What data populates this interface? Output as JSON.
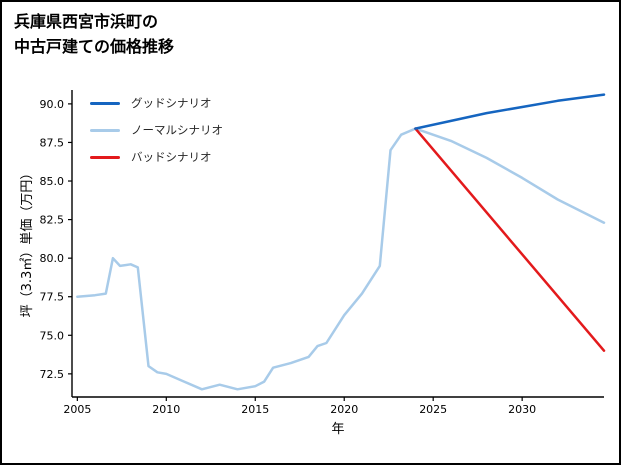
{
  "title": {
    "line1": "兵庫県西宮市浜町の",
    "line2": "中古戸建ての価格推移"
  },
  "chart_data": {
    "type": "line",
    "title": "兵庫県西宮市浜町の中古戸建ての価格推移",
    "xlabel": "年",
    "ylabel": "坪（3.3㎡）単価（万円）",
    "xlim": [
      2004.7,
      2034.6
    ],
    "ylim": [
      71.0,
      90.9
    ],
    "xticks": [
      2005,
      2010,
      2015,
      2020,
      2025,
      2030
    ],
    "xtick_labels": [
      "2005",
      "2010",
      "2015",
      "2020",
      "2025",
      "2030"
    ],
    "yticks": [
      72.5,
      75.0,
      77.5,
      80.0,
      82.5,
      85.0,
      87.5,
      90.0
    ],
    "ytick_labels": [
      "72.5",
      "75.0",
      "77.5",
      "80.0",
      "82.5",
      "85.0",
      "87.5",
      "90.0"
    ],
    "grid": false,
    "legend_position": "upper-left-inside",
    "axis_color": "#000000",
    "series": [
      {
        "name": "グッドシナリオ",
        "role": "forecast-good",
        "color": "#1565c0",
        "line_width": 2.5,
        "points": [
          [
            2024,
            88.4
          ],
          [
            2026,
            88.9
          ],
          [
            2028,
            89.4
          ],
          [
            2030,
            89.8
          ],
          [
            2032,
            90.2
          ],
          [
            2034.6,
            90.6
          ]
        ]
      },
      {
        "name": "ノーマルシナリオ",
        "role": "history-and-forecast-normal",
        "color": "#a8cbe9",
        "line_width": 2.5,
        "points": [
          [
            2005,
            77.5
          ],
          [
            2006,
            77.6
          ],
          [
            2006.6,
            77.7
          ],
          [
            2007,
            80.0
          ],
          [
            2007.4,
            79.5
          ],
          [
            2008,
            79.6
          ],
          [
            2008.4,
            79.4
          ],
          [
            2009,
            73.0
          ],
          [
            2009.5,
            72.6
          ],
          [
            2010,
            72.5
          ],
          [
            2011,
            72.0
          ],
          [
            2012,
            71.5
          ],
          [
            2013,
            71.8
          ],
          [
            2014,
            71.5
          ],
          [
            2015,
            71.7
          ],
          [
            2015.5,
            72.0
          ],
          [
            2016,
            72.9
          ],
          [
            2017,
            73.2
          ],
          [
            2018,
            73.6
          ],
          [
            2018.5,
            74.3
          ],
          [
            2019,
            74.5
          ],
          [
            2020,
            76.3
          ],
          [
            2021,
            77.7
          ],
          [
            2022,
            79.5
          ],
          [
            2022.6,
            87.0
          ],
          [
            2023.2,
            88.0
          ],
          [
            2024,
            88.4
          ],
          [
            2026,
            87.6
          ],
          [
            2028,
            86.5
          ],
          [
            2030,
            85.2
          ],
          [
            2032,
            83.8
          ],
          [
            2034.6,
            82.3
          ]
        ]
      },
      {
        "name": "バッドシナリオ",
        "role": "forecast-bad",
        "color": "#e31a1c",
        "line_width": 2.5,
        "points": [
          [
            2024,
            88.4
          ],
          [
            2034.6,
            74.0
          ]
        ]
      }
    ]
  }
}
